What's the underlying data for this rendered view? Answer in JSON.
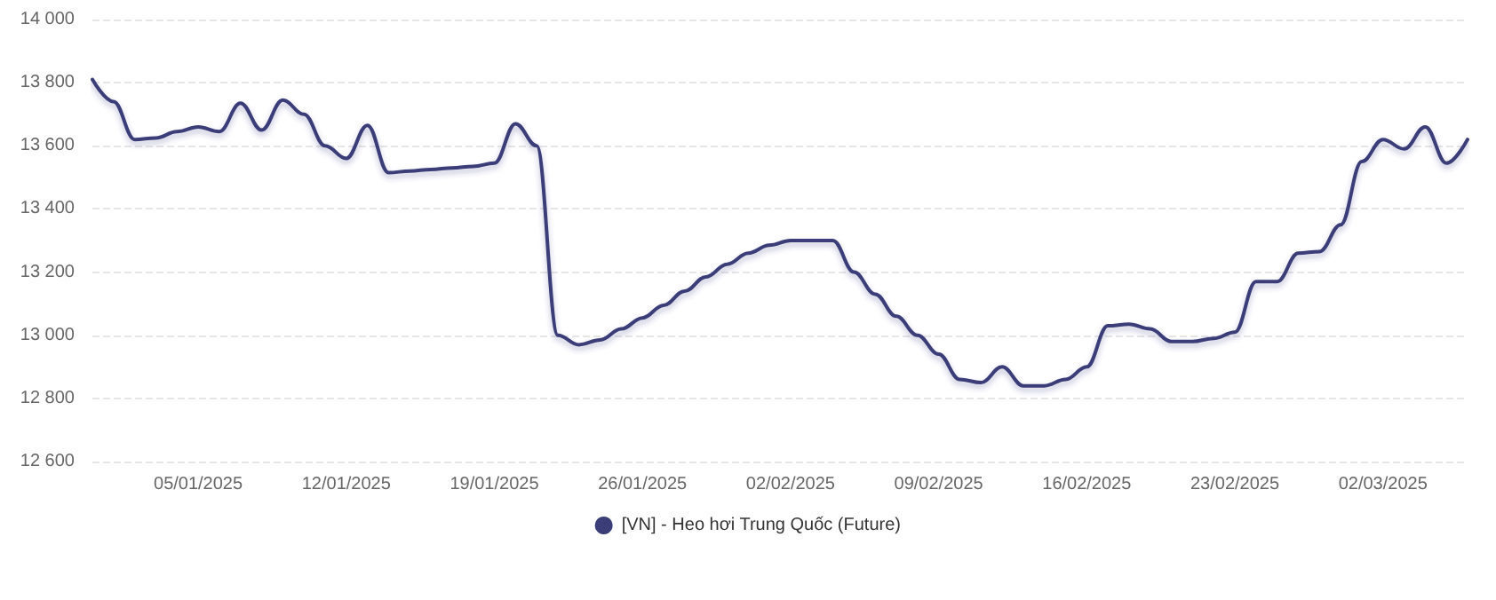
{
  "chart_data": {
    "type": "line",
    "legend": "bottom",
    "grid": "y",
    "line_style": "solid",
    "marker": "none",
    "x": [
      "2024-12-31",
      "2025-01-01",
      "2025-01-02",
      "2025-01-03",
      "2025-01-04",
      "2025-01-05",
      "2025-01-06",
      "2025-01-07",
      "2025-01-08",
      "2025-01-09",
      "2025-01-10",
      "2025-01-11",
      "2025-01-12",
      "2025-01-13",
      "2025-01-14",
      "2025-01-15",
      "2025-01-16",
      "2025-01-17",
      "2025-01-18",
      "2025-01-19",
      "2025-01-20",
      "2025-01-21",
      "2025-01-22",
      "2025-01-23",
      "2025-01-24",
      "2025-01-25",
      "2025-01-26",
      "2025-01-27",
      "2025-01-28",
      "2025-01-29",
      "2025-01-30",
      "2025-01-31",
      "2025-02-01",
      "2025-02-02",
      "2025-02-03",
      "2025-02-04",
      "2025-02-05",
      "2025-02-06",
      "2025-02-07",
      "2025-02-08",
      "2025-02-09",
      "2025-02-10",
      "2025-02-11",
      "2025-02-12",
      "2025-02-13",
      "2025-02-14",
      "2025-02-15",
      "2025-02-16",
      "2025-02-17",
      "2025-02-18",
      "2025-02-19",
      "2025-02-20",
      "2025-02-21",
      "2025-02-22",
      "2025-02-23",
      "2025-02-24",
      "2025-02-25",
      "2025-02-26",
      "2025-02-27",
      "2025-02-28",
      "2025-03-01",
      "2025-03-02",
      "2025-03-03",
      "2025-03-04",
      "2025-03-05",
      "2025-03-06"
    ],
    "series": [
      {
        "name": "[VN] - Heo hơi Trung Quốc (Future)",
        "color": "#3b3d78",
        "values": [
          13810,
          13740,
          13620,
          13625,
          13645,
          13660,
          13645,
          13735,
          13650,
          13745,
          13700,
          13600,
          13560,
          13665,
          13515,
          13520,
          13525,
          13530,
          13535,
          13545,
          13670,
          13600,
          13000,
          12970,
          12985,
          13020,
          13055,
          13095,
          13140,
          13185,
          13225,
          13260,
          13285,
          13300,
          13300,
          13300,
          13200,
          13130,
          13060,
          13000,
          12940,
          12860,
          12850,
          12900,
          12840,
          12840,
          12860,
          12900,
          13030,
          13035,
          13020,
          12980,
          12980,
          12990,
          13010,
          13170,
          13170,
          13260,
          13265,
          13350,
          13550,
          13620,
          13590,
          13660,
          13545,
          13620
        ]
      }
    ],
    "xlim": [
      "2024-12-31",
      "2025-03-06"
    ],
    "xticks": [
      {
        "value": "2025-01-05",
        "label": "05/01/2025"
      },
      {
        "value": "2025-01-12",
        "label": "12/01/2025"
      },
      {
        "value": "2025-01-19",
        "label": "19/01/2025"
      },
      {
        "value": "2025-01-26",
        "label": "26/01/2025"
      },
      {
        "value": "2025-02-02",
        "label": "02/02/2025"
      },
      {
        "value": "2025-02-09",
        "label": "09/02/2025"
      },
      {
        "value": "2025-02-16",
        "label": "16/02/2025"
      },
      {
        "value": "2025-02-23",
        "label": "23/02/2025"
      },
      {
        "value": "2025-03-02",
        "label": "02/03/2025"
      }
    ],
    "ylim": [
      12600,
      14000
    ],
    "yticks": [
      {
        "value": 12600,
        "label": "12 600"
      },
      {
        "value": 12800,
        "label": "12 800"
      },
      {
        "value": 13000,
        "label": "13 000"
      },
      {
        "value": 13200,
        "label": "13 200"
      },
      {
        "value": 13400,
        "label": "13 400"
      },
      {
        "value": 13600,
        "label": "13 600"
      },
      {
        "value": 13800,
        "label": "13 800"
      },
      {
        "value": 14000,
        "label": "14 000"
      }
    ]
  }
}
